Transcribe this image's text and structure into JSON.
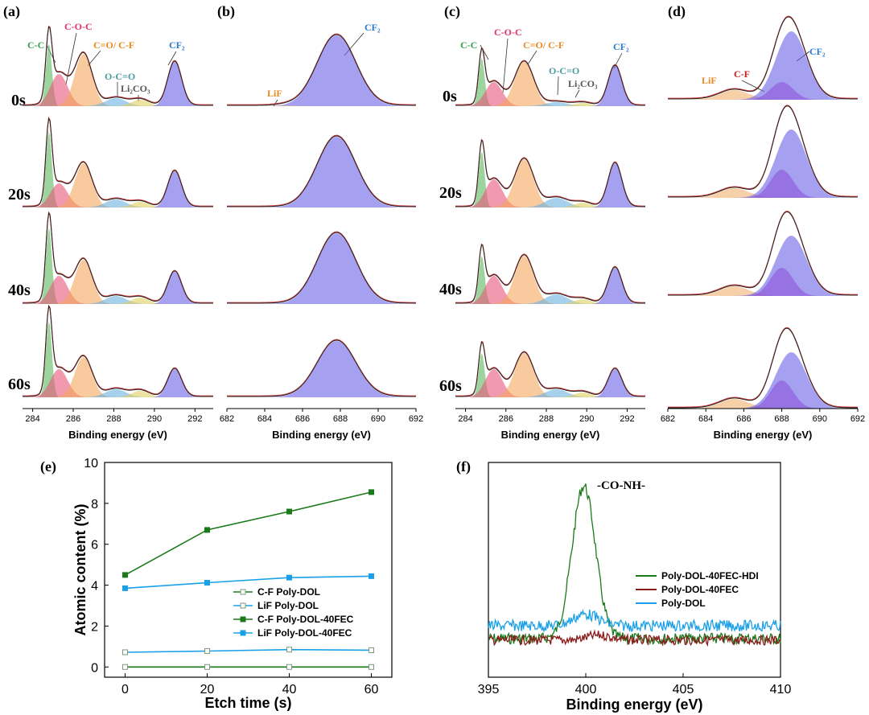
{
  "figure": {
    "panels": [
      {
        "label": "(a)",
        "type": "xps_stack",
        "xrange": [
          283.5,
          292.9
        ],
        "ticks": [
          284,
          286,
          288,
          290,
          292
        ],
        "xlabel": "Binding energy (eV)"
      },
      {
        "label": "(b)",
        "type": "xps_stack",
        "xrange": [
          682,
          692
        ],
        "ticks": [
          682,
          684,
          686,
          688,
          690,
          692
        ],
        "xlabel": "Binding energy (eV)"
      },
      {
        "label": "(c)",
        "type": "xps_stack",
        "xrange": [
          283.5,
          292.9
        ],
        "ticks": [
          284,
          286,
          288,
          290,
          292
        ],
        "xlabel": "Binding energy (eV)"
      },
      {
        "label": "(d)",
        "type": "xps_stack",
        "xrange": [
          682,
          692
        ],
        "ticks": [
          682,
          684,
          686,
          688,
          690,
          692
        ],
        "xlabel": "Binding energy (eV)"
      }
    ],
    "etch_labels_a": [
      "0s",
      "20s",
      "40s",
      "60s"
    ],
    "etch_labels_c": [
      "0s",
      "20s",
      "40s",
      "60s"
    ],
    "peak_labels_a": [
      "C-C",
      "C-O-C",
      "C=O/ C-F",
      "O-C=O",
      "Li₂CO₃",
      "CF₂"
    ],
    "peak_labels_b": [
      "CF₂",
      "LiF"
    ],
    "peak_labels_c": [
      "C-C",
      "C-O-C",
      "C=O/ C-F",
      "O-C=O",
      "Li₂CO₃",
      "CF₂"
    ],
    "peak_labels_d": [
      "LiF",
      "C-F",
      "CF₂"
    ],
    "panel_e_label": "(e)",
    "panel_f_label": "(f)",
    "panel_f_annotation": "-CO-NH-"
  },
  "colors": {
    "cc": "#5cb85c",
    "coc": "#e8557a",
    "co": "#f5a65b",
    "ocO": "#6ab0e0",
    "li2co3": "#e0d060",
    "cf2": "#6a60e8",
    "lif": "#f0b070",
    "cf": "#c040c0",
    "envelope": "#222222",
    "raw": "#d04040",
    "label_cc": "#3aa050",
    "label_coc": "#e0306a",
    "label_co": "#e88a20",
    "label_oco": "#4a9aa0",
    "label_li2co3": "#555555",
    "label_cf2": "#2a7ad0",
    "label_lif": "#e88a20",
    "label_cf": "#c02020",
    "green": "#1a7a1a",
    "blue": "#1aa0e8",
    "darkred": "#8b1a1a"
  },
  "chart_data": [
    {
      "type": "xps_stack",
      "panel": "(a)",
      "xlabel": "Binding energy (eV)",
      "xlim": [
        283.5,
        292.9
      ],
      "series_labels": [
        "0s",
        "20s",
        "40s",
        "60s"
      ],
      "components": [
        {
          "name": "C-C",
          "center": 284.8,
          "fwhm": 0.35
        },
        {
          "name": "C-O-C",
          "center": 285.3,
          "fwhm": 1.0
        },
        {
          "name": "C=O/ C-F",
          "center": 286.5,
          "fwhm": 1.0
        },
        {
          "name": "O-C=O",
          "center": 288.1,
          "fwhm": 1.2
        },
        {
          "name": "Li₂CO₃",
          "center": 289.3,
          "fwhm": 1.0
        },
        {
          "name": "CF₂",
          "center": 291.0,
          "fwhm": 0.8
        }
      ],
      "amplitudes": [
        [
          0.78,
          0.4,
          0.65,
          0.1,
          0.08,
          0.55
        ],
        [
          0.95,
          0.3,
          0.55,
          0.1,
          0.07,
          0.45
        ],
        [
          0.95,
          0.35,
          0.55,
          0.1,
          0.08,
          0.4
        ],
        [
          0.95,
          0.35,
          0.5,
          0.1,
          0.08,
          0.35
        ]
      ]
    },
    {
      "type": "xps_stack",
      "panel": "(b)",
      "xlabel": "Binding energy (eV)",
      "xlim": [
        682,
        692
      ],
      "series_labels": [
        "0s",
        "20s",
        "40s",
        "60s"
      ],
      "components": [
        {
          "name": "CF₂",
          "center": 687.8,
          "fwhm": 2.4
        },
        {
          "name": "LiF",
          "center": 685.0,
          "fwhm": 1.2
        }
      ],
      "amplitudes": [
        [
          0.88,
          0.01
        ],
        [
          0.88,
          0.0
        ],
        [
          0.88,
          0.0
        ],
        [
          0.7,
          0.0
        ]
      ]
    },
    {
      "type": "xps_stack",
      "panel": "(c)",
      "xlabel": "Binding energy (eV)",
      "xlim": [
        283.5,
        292.9
      ],
      "series_labels": [
        "0s",
        "20s",
        "40s",
        "60s"
      ],
      "components": [
        {
          "name": "C-C",
          "center": 284.8,
          "fwhm": 0.35
        },
        {
          "name": "C-O-C",
          "center": 285.4,
          "fwhm": 1.0
        },
        {
          "name": "C=O/ C-F",
          "center": 286.9,
          "fwhm": 1.1
        },
        {
          "name": "O-C=O",
          "center": 288.5,
          "fwhm": 1.3
        },
        {
          "name": "Li₂CO₃",
          "center": 289.8,
          "fwhm": 1.0
        },
        {
          "name": "CF₂",
          "center": 291.4,
          "fwhm": 0.8
        }
      ],
      "amplitudes": [
        [
          0.6,
          0.3,
          0.55,
          0.05,
          0.04,
          0.5
        ],
        [
          0.7,
          0.35,
          0.6,
          0.12,
          0.06,
          0.55
        ],
        [
          0.6,
          0.35,
          0.6,
          0.12,
          0.06,
          0.45
        ],
        [
          0.55,
          0.35,
          0.55,
          0.1,
          0.06,
          0.35
        ]
      ]
    },
    {
      "type": "xps_stack",
      "panel": "(d)",
      "xlabel": "Binding energy (eV)",
      "xlim": [
        682,
        692
      ],
      "series_labels": [
        "0s",
        "20s",
        "40s",
        "60s"
      ],
      "components": [
        {
          "name": "LiF",
          "center": 685.5,
          "fwhm": 1.8
        },
        {
          "name": "C-F",
          "center": 688.0,
          "fwhm": 1.4
        },
        {
          "name": "CF₂",
          "center": 688.5,
          "fwhm": 1.9
        }
      ],
      "amplitudes": [
        [
          0.12,
          0.22,
          0.85
        ],
        [
          0.12,
          0.35,
          0.85
        ],
        [
          0.12,
          0.35,
          0.75
        ],
        [
          0.12,
          0.35,
          0.7
        ]
      ]
    },
    {
      "type": "line",
      "panel": "(e)",
      "xlabel": "Etch time (s)",
      "ylabel": "Atomic content (%)",
      "x": [
        0,
        20,
        40,
        60
      ],
      "xlim": [
        -5,
        65
      ],
      "ylim": [
        -0.5,
        10
      ],
      "xticks": [
        0,
        20,
        40,
        60
      ],
      "yticks": [
        0,
        2,
        4,
        6,
        8,
        10
      ],
      "legend_position": "bottom-right",
      "series": [
        {
          "name": "C-F  Poly-DOL",
          "values": [
            0.0,
            0.0,
            0.0,
            0.0
          ],
          "color": "#1a7a1a",
          "marker": "open-square"
        },
        {
          "name": "LiF  Poly-DOL",
          "values": [
            0.72,
            0.78,
            0.85,
            0.82
          ],
          "color": "#1aa0e8",
          "marker": "open-square"
        },
        {
          "name": "C-F  Poly-DOL-40FEC",
          "values": [
            4.5,
            6.7,
            7.6,
            8.55
          ],
          "color": "#1a7a1a",
          "marker": "filled-square"
        },
        {
          "name": "LiF  Poly-DOL-40FEC",
          "values": [
            3.85,
            4.12,
            4.37,
            4.44
          ],
          "color": "#1aa0e8",
          "marker": "filled-square"
        }
      ]
    },
    {
      "type": "line",
      "panel": "(f)",
      "xlabel": "Binding energy (eV)",
      "xlim": [
        395,
        410
      ],
      "xticks": [
        395,
        400,
        405,
        410
      ],
      "annotation": "-CO-NH-",
      "legend_position": "right",
      "series": [
        {
          "name": "Poly-DOL-40FEC-HDI",
          "color": "#1a7a1a",
          "peak_center": 399.9,
          "peak_height": 0.95
        },
        {
          "name": "Poly-DOL-40FEC",
          "color": "#8b1a1a",
          "peak_center": 400.7,
          "peak_height": 0.05
        },
        {
          "name": "Poly-DOL",
          "color": "#1aa0e8",
          "peak_center": 400.0,
          "peak_height": 0.12
        }
      ]
    }
  ]
}
